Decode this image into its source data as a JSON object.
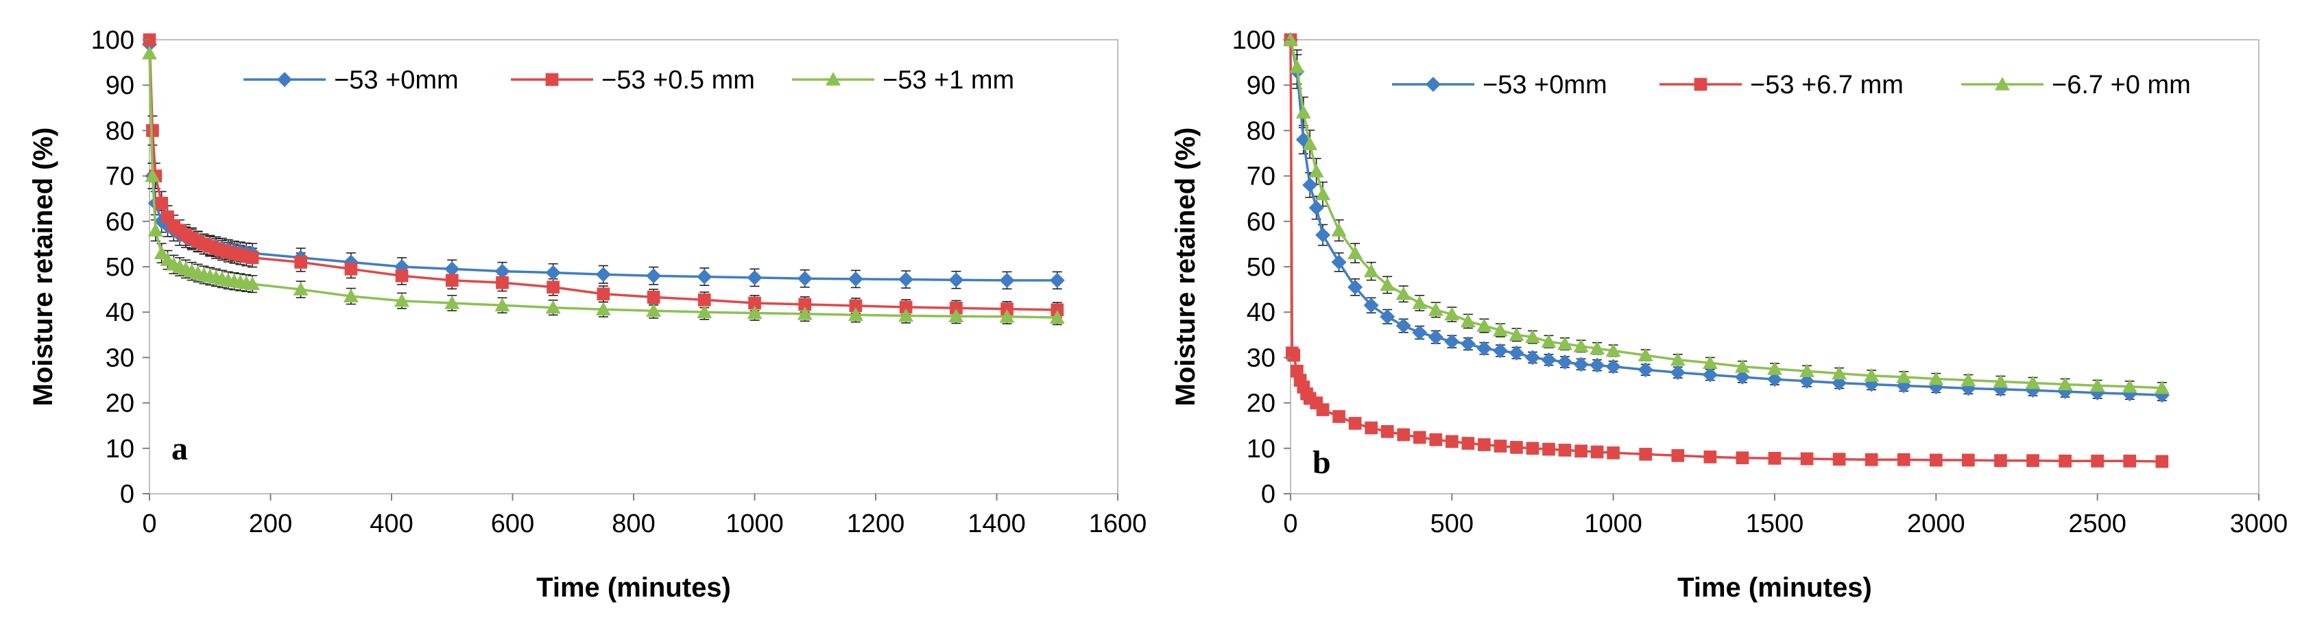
{
  "chart_data": [
    {
      "type": "line",
      "panel_label": "a",
      "title": "",
      "xlabel": "Time (minutes)",
      "ylabel": "Moisture retained (%)",
      "xlim": [
        0,
        1600
      ],
      "ylim": [
        0,
        100
      ],
      "xticks": [
        "0",
        "200",
        "400",
        "600",
        "800",
        "1000",
        "1200",
        "1400",
        "1600"
      ],
      "yticks": [
        "0",
        "10",
        "20",
        "30",
        "40",
        "50",
        "60",
        "70",
        "80",
        "90",
        "100"
      ],
      "legend_position": "top",
      "series": [
        {
          "name": "−53 +0mm",
          "color": "#3f7dc6",
          "marker": "diamond",
          "x": [
            0,
            5,
            10,
            20,
            30,
            40,
            50,
            60,
            70,
            80,
            90,
            100,
            110,
            120,
            130,
            140,
            150,
            160,
            170,
            250,
            333,
            417,
            500,
            583,
            667,
            750,
            833,
            917,
            1000,
            1083,
            1167,
            1250,
            1333,
            1417,
            1500
          ],
          "y": [
            99,
            70,
            64,
            60,
            59,
            58,
            57,
            56.5,
            56,
            55.5,
            55,
            54.7,
            54.4,
            54.1,
            53.8,
            53.5,
            53.3,
            53.1,
            53,
            52,
            51,
            50,
            49.5,
            49,
            48.7,
            48.3,
            48,
            47.8,
            47.6,
            47.4,
            47.3,
            47.2,
            47.1,
            47,
            47
          ]
        },
        {
          "name": "−53 +0.5 mm",
          "color": "#e04848",
          "marker": "square",
          "x": [
            0,
            5,
            10,
            20,
            30,
            40,
            50,
            60,
            70,
            80,
            90,
            100,
            110,
            120,
            130,
            140,
            150,
            160,
            170,
            250,
            333,
            417,
            500,
            583,
            667,
            750,
            833,
            917,
            1000,
            1083,
            1167,
            1250,
            1333,
            1417,
            1500
          ],
          "y": [
            100,
            80,
            70,
            64,
            61,
            59,
            58,
            57,
            56.3,
            55.6,
            55,
            54.5,
            54,
            53.6,
            53.2,
            52.9,
            52.6,
            52.3,
            52,
            51,
            49.5,
            48,
            47,
            46.5,
            45.5,
            44,
            43.3,
            42.7,
            42,
            41.7,
            41.4,
            41.1,
            40.9,
            40.7,
            40.5
          ]
        },
        {
          "name": "−53 +1 mm",
          "color": "#8cc152",
          "marker": "triangle",
          "x": [
            0,
            5,
            10,
            20,
            30,
            40,
            50,
            60,
            70,
            80,
            90,
            100,
            110,
            120,
            130,
            140,
            150,
            160,
            170,
            250,
            333,
            417,
            500,
            583,
            667,
            750,
            833,
            917,
            1000,
            1083,
            1167,
            1250,
            1333,
            1417,
            1500
          ],
          "y": [
            97,
            70,
            58,
            53,
            51.5,
            50.5,
            50,
            49.5,
            49,
            48.6,
            48.2,
            47.9,
            47.6,
            47.3,
            47,
            46.8,
            46.6,
            46.4,
            46.2,
            45,
            43.5,
            42.5,
            42,
            41.5,
            41,
            40.6,
            40.3,
            40,
            39.8,
            39.6,
            39.4,
            39.2,
            39.1,
            39,
            38.8
          ]
        }
      ]
    },
    {
      "type": "line",
      "panel_label": "b",
      "title": "",
      "xlabel": "Time (minutes)",
      "ylabel": "Moisture retained (%)",
      "xlim": [
        0,
        3000
      ],
      "ylim": [
        0,
        100
      ],
      "xticks": [
        "0",
        "500",
        "1000",
        "1500",
        "2000",
        "2500",
        "3000"
      ],
      "yticks": [
        "0",
        "10",
        "20",
        "30",
        "40",
        "50",
        "60",
        "70",
        "80",
        "90",
        "100"
      ],
      "legend_position": "top",
      "series": [
        {
          "name": "−53 +0mm",
          "color": "#3f7dc6",
          "marker": "diamond",
          "x": [
            0,
            20,
            40,
            60,
            80,
            100,
            150,
            200,
            250,
            300,
            350,
            400,
            450,
            500,
            550,
            600,
            650,
            700,
            750,
            800,
            850,
            900,
            950,
            1000,
            1100,
            1200,
            1300,
            1400,
            1500,
            1600,
            1700,
            1800,
            1900,
            2000,
            2100,
            2200,
            2300,
            2400,
            2500,
            2600,
            2700
          ],
          "y": [
            100,
            93,
            78,
            68,
            63,
            57,
            51,
            45.5,
            41.5,
            39,
            37,
            35.5,
            34.5,
            33.5,
            33,
            32,
            31.5,
            31,
            30,
            29.5,
            29,
            28.5,
            28.3,
            28,
            27.3,
            26.7,
            26.2,
            25.7,
            25.2,
            24.8,
            24.4,
            24.1,
            23.8,
            23.5,
            23.2,
            23,
            22.8,
            22.5,
            22.2,
            22,
            21.7
          ]
        },
        {
          "name": "−53 +6.7 mm",
          "color": "#e04848",
          "marker": "square",
          "x": [
            0,
            5,
            10,
            20,
            30,
            40,
            50,
            60,
            80,
            100,
            150,
            200,
            250,
            300,
            350,
            400,
            450,
            500,
            550,
            600,
            650,
            700,
            750,
            800,
            850,
            900,
            950,
            1000,
            1100,
            1200,
            1300,
            1400,
            1500,
            1600,
            1700,
            1800,
            1900,
            2000,
            2100,
            2200,
            2300,
            2400,
            2500,
            2600,
            2700
          ],
          "y": [
            100,
            31,
            30.5,
            27,
            25,
            23.5,
            22,
            21,
            20,
            18.5,
            17,
            15.5,
            14.5,
            13.7,
            13,
            12.4,
            11.9,
            11.5,
            11.1,
            10.8,
            10.5,
            10.2,
            10,
            9.8,
            9.6,
            9.4,
            9.2,
            9,
            8.7,
            8.4,
            8.1,
            7.9,
            7.8,
            7.7,
            7.6,
            7.5,
            7.5,
            7.4,
            7.4,
            7.3,
            7.3,
            7.2,
            7.2,
            7.2,
            7.1
          ]
        },
        {
          "name": "−6.7 +0 mm",
          "color": "#8cc152",
          "marker": "triangle",
          "x": [
            0,
            20,
            40,
            60,
            80,
            100,
            150,
            200,
            250,
            300,
            350,
            400,
            450,
            500,
            550,
            600,
            650,
            700,
            750,
            800,
            850,
            900,
            950,
            1000,
            1100,
            1200,
            1300,
            1400,
            1500,
            1600,
            1700,
            1800,
            1900,
            2000,
            2100,
            2200,
            2300,
            2400,
            2500,
            2600,
            2700
          ],
          "y": [
            100,
            94,
            84,
            77,
            71,
            66,
            58,
            53,
            49,
            46,
            44,
            42,
            40.5,
            39.5,
            38,
            37,
            36,
            35,
            34.5,
            33.5,
            33,
            32.5,
            32,
            31.5,
            30.5,
            29.5,
            28.8,
            28,
            27.5,
            27,
            26.5,
            26,
            25.7,
            25.3,
            25,
            24.7,
            24.4,
            24.1,
            23.8,
            23.6,
            23.3
          ]
        }
      ]
    }
  ]
}
